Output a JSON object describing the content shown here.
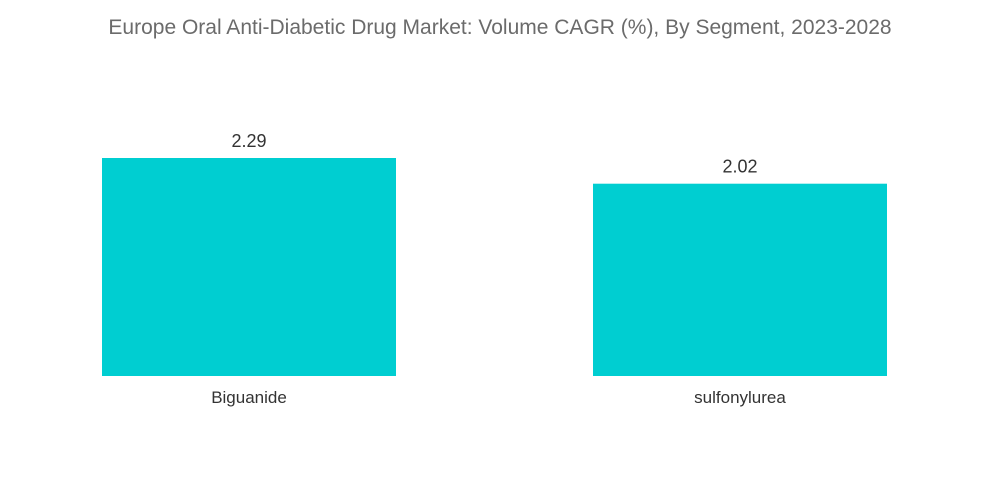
{
  "chart_data": {
    "type": "bar",
    "title": "Europe Oral Anti-Diabetic Drug Market: Volume CAGR (%), By Segment, 2023-2028",
    "xlabel": "",
    "ylabel": "",
    "categories": [
      "Biguanide",
      "sulfonylurea"
    ],
    "values": [
      2.29,
      2.02
    ],
    "value_labels": [
      "2.29",
      "2.02"
    ],
    "ylim": [
      0,
      2.29
    ],
    "grid": false,
    "legend": "none",
    "bar_color": "#00CED1"
  }
}
